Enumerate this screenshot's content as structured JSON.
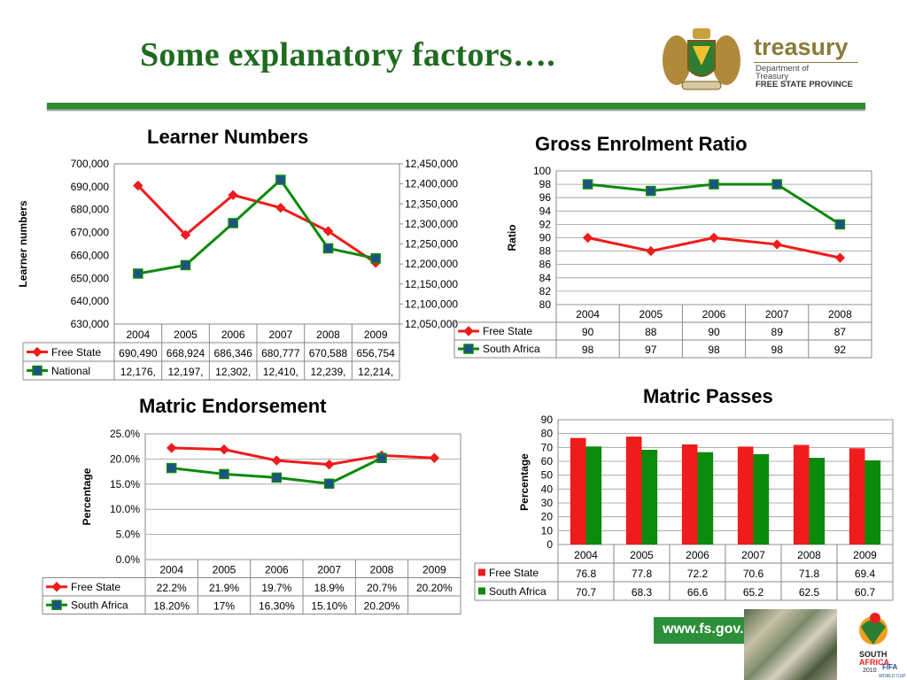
{
  "title": "Some explanatory factors….",
  "logo": {
    "word": "treasury",
    "line1": "Department of",
    "line2": "Treasury",
    "line3": "FREE STATE PROVINCE"
  },
  "footer": {
    "url": "www.fs.gov.za",
    "badge_line1": "SOUTH",
    "badge_line2": "AFRICA",
    "badge_line3": "2010",
    "badge_line4": "FIFA",
    "badge_line5": "WORLD CUP"
  },
  "colors": {
    "red": "#ee1c1c",
    "green": "#0c8a0c",
    "marker_blue": "#1f4e8c",
    "title_green": "#1f6b1f"
  },
  "chart_data": [
    {
      "type": "line",
      "title": "Learner Numbers",
      "ylabel": "Learner numbers",
      "categories": [
        "2004",
        "2005",
        "2006",
        "2007",
        "2008",
        "2009"
      ],
      "ylim": [
        630000,
        700000
      ],
      "y2lim": [
        12050000,
        12450000
      ],
      "yticks": [
        "700,000",
        "690,000",
        "680,000",
        "670,000",
        "660,000",
        "650,000",
        "640,000",
        "630,000"
      ],
      "y2ticks": [
        "12,450,000",
        "12,400,000",
        "12,350,000",
        "12,300,000",
        "12,250,000",
        "12,200,000",
        "12,150,000",
        "12,100,000",
        "12,050,000"
      ],
      "series": [
        {
          "name": "Free State",
          "axis": "left",
          "color": "red",
          "marker": "diamond",
          "values": [
            690490,
            668924,
            686346,
            680777,
            670588,
            656754
          ],
          "labels": [
            "690,490",
            "668,924",
            "686,346",
            "680,777",
            "670,588",
            "656,754"
          ]
        },
        {
          "name": "National",
          "axis": "right",
          "color": "green",
          "marker": "square",
          "values": [
            12176000,
            12197000,
            12302000,
            12410000,
            12239000,
            12214000
          ],
          "labels": [
            "12,176,",
            "12,197,",
            "12,302,",
            "12,410,",
            "12,239,",
            "12,214,"
          ]
        }
      ]
    },
    {
      "type": "line",
      "title": "Gross Enrolment Ratio",
      "ylabel": "Ratio",
      "categories": [
        "2004",
        "2005",
        "2006",
        "2007",
        "2008"
      ],
      "ylim": [
        80,
        100
      ],
      "yticks": [
        "100",
        "98",
        "96",
        "94",
        "92",
        "90",
        "88",
        "86",
        "84",
        "82",
        "80"
      ],
      "series": [
        {
          "name": "Free State",
          "color": "red",
          "marker": "diamond",
          "values": [
            90,
            88,
            90,
            89,
            87
          ],
          "labels": [
            "90",
            "88",
            "90",
            "89",
            "87"
          ]
        },
        {
          "name": "South Africa",
          "color": "green",
          "marker": "square",
          "values": [
            98,
            97,
            98,
            98,
            92
          ],
          "labels": [
            "98",
            "97",
            "98",
            "98",
            "92"
          ]
        }
      ]
    },
    {
      "type": "line",
      "title": "Matric Endorsement",
      "ylabel": "Percentage",
      "categories": [
        "2004",
        "2005",
        "2006",
        "2007",
        "2008",
        "2009"
      ],
      "ylim": [
        0,
        25
      ],
      "yticks": [
        "25.0%",
        "20.0%",
        "15.0%",
        "10.0%",
        "5.0%",
        "0.0%"
      ],
      "series": [
        {
          "name": "Free State",
          "color": "red",
          "marker": "diamond",
          "values": [
            22.2,
            21.9,
            19.7,
            18.9,
            20.7,
            20.2
          ],
          "labels": [
            "22.2%",
            "21.9%",
            "19.7%",
            "18.9%",
            "20.7%",
            "20.20%"
          ]
        },
        {
          "name": "South Africa",
          "color": "green",
          "marker": "square",
          "values": [
            18.2,
            17,
            16.3,
            15.1,
            20.2,
            null
          ],
          "labels": [
            "18.20%",
            "17%",
            "16.30%",
            "15.10%",
            "20.20%",
            ""
          ]
        }
      ]
    },
    {
      "type": "bar",
      "title": "Matric Passes",
      "ylabel": "Percentage",
      "categories": [
        "2004",
        "2005",
        "2006",
        "2007",
        "2008",
        "2009"
      ],
      "ylim": [
        0,
        90
      ],
      "yticks": [
        "90",
        "80",
        "70",
        "60",
        "50",
        "40",
        "30",
        "20",
        "10",
        "0"
      ],
      "series": [
        {
          "name": "Free State",
          "color": "red",
          "values": [
            76.8,
            77.8,
            72.2,
            70.6,
            71.8,
            69.4
          ],
          "labels": [
            "76.8",
            "77.8",
            "72.2",
            "70.6",
            "71.8",
            "69.4"
          ]
        },
        {
          "name": "South Africa",
          "color": "green",
          "values": [
            70.7,
            68.3,
            66.6,
            65.2,
            62.5,
            60.7
          ],
          "labels": [
            "70.7",
            "68.3",
            "66.6",
            "65.2",
            "62.5",
            "60.7"
          ]
        }
      ]
    }
  ]
}
